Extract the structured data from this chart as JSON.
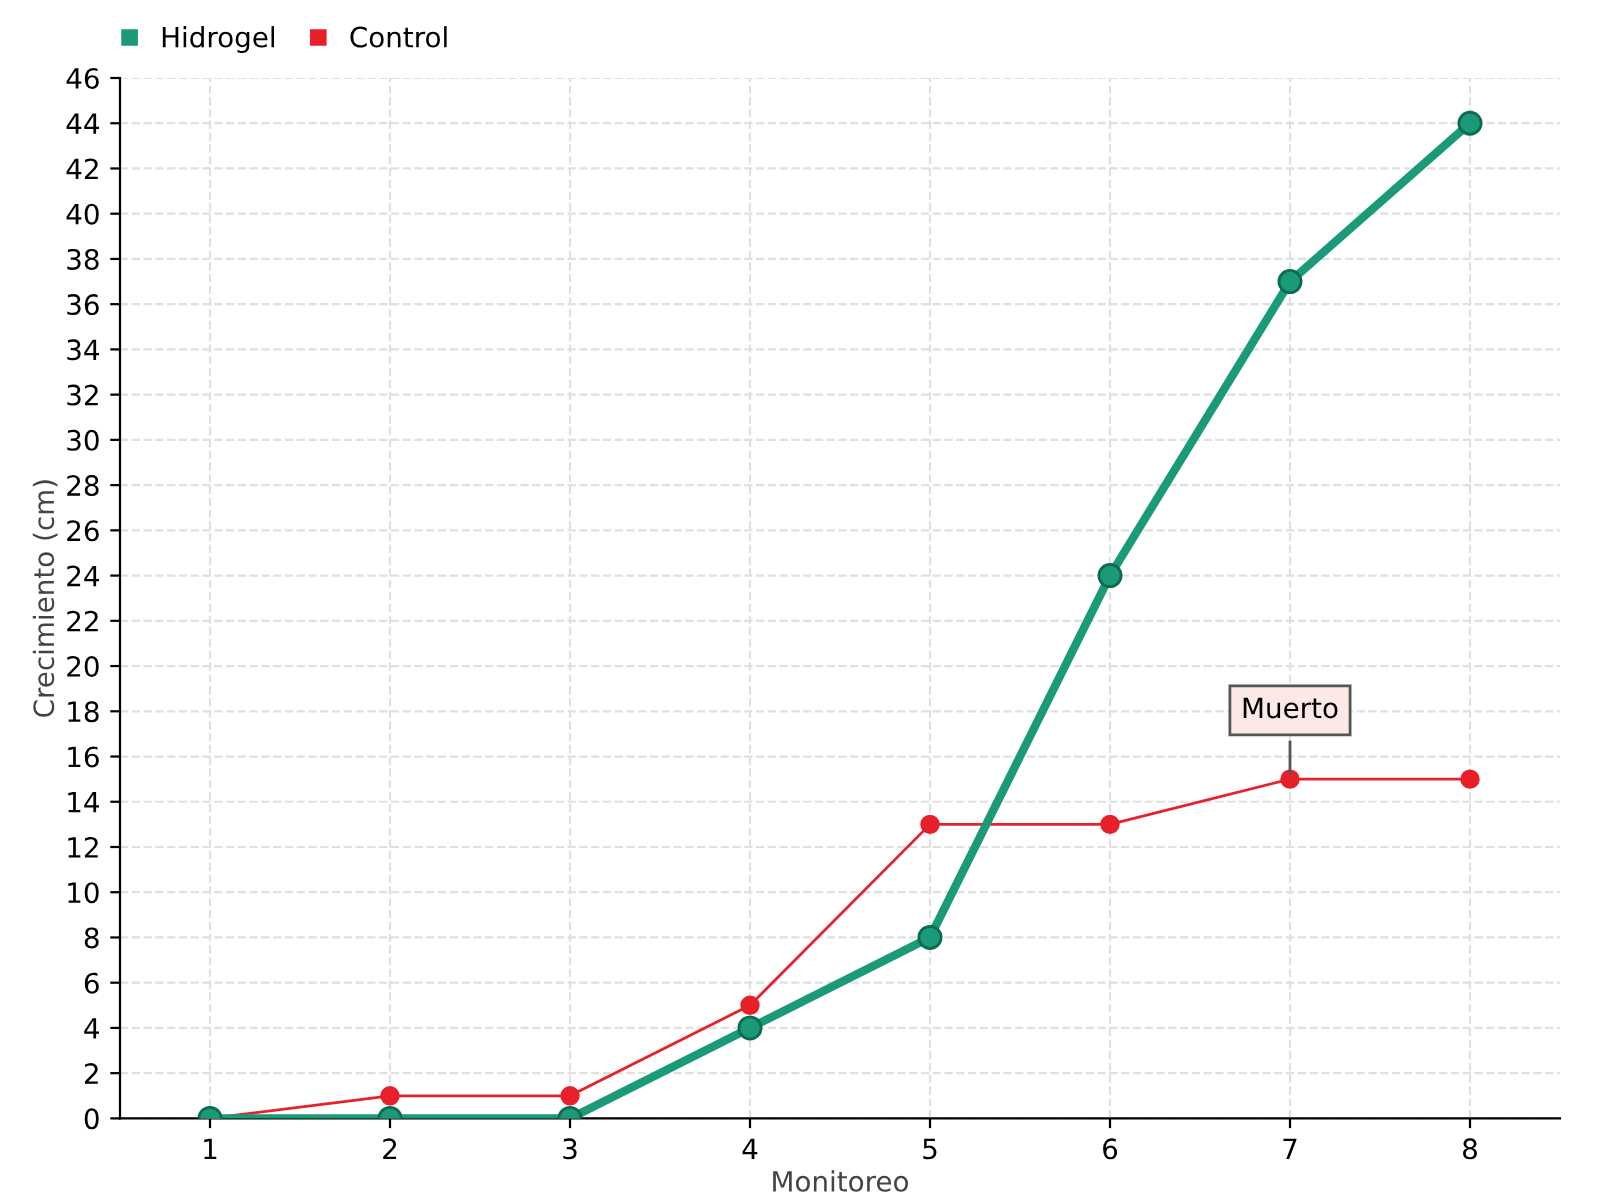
{
  "chart_data": {
    "type": "line",
    "xlabel": "Monitoreo",
    "ylabel": "Crecimiento (cm)",
    "categories": [
      "1",
      "2",
      "3",
      "4",
      "5",
      "6",
      "7",
      "8"
    ],
    "series": [
      {
        "name": "Hidrogel",
        "color": "#1a9a78",
        "values": [
          0,
          0,
          0,
          4,
          8,
          24,
          37,
          44
        ]
      },
      {
        "name": "Control",
        "color": "#e8202a",
        "values": [
          0,
          1,
          1,
          5,
          13,
          13,
          15,
          15
        ]
      }
    ],
    "ylim": [
      0,
      46
    ],
    "yticks": [
      0,
      2,
      4,
      6,
      8,
      10,
      12,
      14,
      16,
      18,
      20,
      22,
      24,
      26,
      28,
      30,
      32,
      34,
      36,
      38,
      40,
      42,
      44,
      46
    ],
    "grid": true,
    "legend": "top left",
    "marker": "circle",
    "line_style": "solid",
    "annotations": [
      {
        "text": "Muerto",
        "x": "7",
        "y": 15
      }
    ]
  }
}
